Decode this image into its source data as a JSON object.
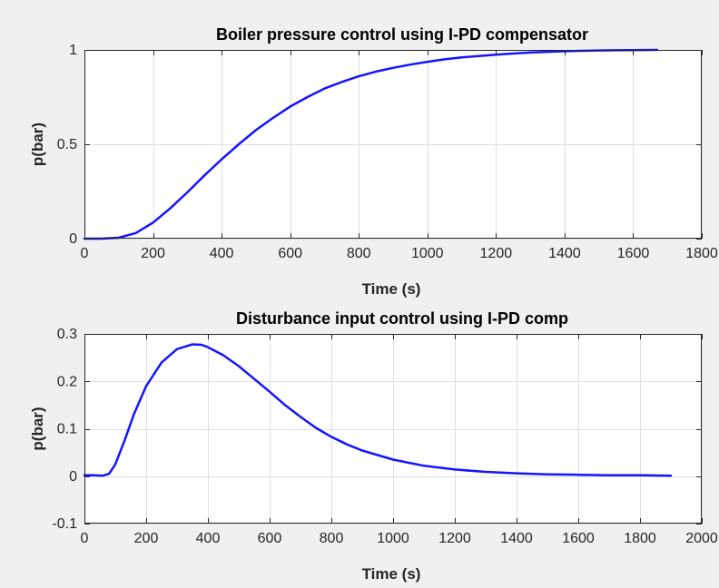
{
  "chart_data": [
    {
      "type": "line",
      "title": "Boiler pressure control using I-PD compensator",
      "xlabel": "Time (s)",
      "ylabel": "p(bar)",
      "xlim": [
        0,
        1800
      ],
      "ylim": [
        0,
        1
      ],
      "xticks": [
        0,
        200,
        400,
        600,
        800,
        1000,
        1200,
        1400,
        1600,
        1800
      ],
      "yticks": [
        0,
        0.5,
        1
      ],
      "xtick_labels": [
        "0",
        "200",
        "400",
        "600",
        "800",
        "1000",
        "1200",
        "1400",
        "1600",
        "1800"
      ],
      "ytick_labels": [
        "0",
        "0.5",
        "1"
      ],
      "grid": true,
      "color": "#1414ff",
      "series": [
        {
          "x": [
            0,
            50,
            100,
            150,
            200,
            250,
            300,
            350,
            400,
            450,
            500,
            550,
            600,
            650,
            700,
            750,
            800,
            850,
            900,
            950,
            1000,
            1050,
            1100,
            1150,
            1200,
            1250,
            1300,
            1350,
            1400,
            1450,
            1500,
            1550,
            1600,
            1670
          ],
          "y": [
            0.0,
            0.0,
            0.005,
            0.03,
            0.085,
            0.16,
            0.245,
            0.335,
            0.42,
            0.5,
            0.575,
            0.64,
            0.7,
            0.75,
            0.795,
            0.83,
            0.86,
            0.885,
            0.905,
            0.922,
            0.937,
            0.95,
            0.96,
            0.968,
            0.975,
            0.981,
            0.986,
            0.99,
            0.993,
            0.995,
            0.997,
            0.998,
            0.999,
            1.0
          ]
        }
      ]
    },
    {
      "type": "line",
      "title": "Disturbance input control using I-PD comp",
      "xlabel": "Time (s)",
      "ylabel": "p(bar)",
      "xlim": [
        0,
        2000
      ],
      "ylim": [
        -0.1,
        0.3
      ],
      "xticks": [
        0,
        200,
        400,
        600,
        800,
        1000,
        1200,
        1400,
        1600,
        1800,
        2000
      ],
      "yticks": [
        -0.1,
        0,
        0.1,
        0.2,
        0.3
      ],
      "xtick_labels": [
        "0",
        "200",
        "400",
        "600",
        "800",
        "1000",
        "1200",
        "1400",
        "1600",
        "1800",
        "2000"
      ],
      "ytick_labels": [
        "-0.1",
        "0",
        "0.1",
        "0.2",
        "0.3"
      ],
      "grid": true,
      "color": "#1414ff",
      "series": [
        {
          "x": [
            0,
            30,
            60,
            80,
            100,
            130,
            160,
            200,
            250,
            300,
            350,
            380,
            400,
            450,
            500,
            550,
            600,
            650,
            700,
            750,
            800,
            850,
            900,
            1000,
            1100,
            1200,
            1300,
            1400,
            1500,
            1600,
            1700,
            1800,
            1900
          ],
          "y": [
            0.002,
            0.002,
            0.001,
            0.005,
            0.025,
            0.075,
            0.13,
            0.19,
            0.24,
            0.268,
            0.278,
            0.277,
            0.272,
            0.255,
            0.232,
            0.205,
            0.178,
            0.15,
            0.125,
            0.102,
            0.083,
            0.067,
            0.054,
            0.035,
            0.022,
            0.014,
            0.009,
            0.006,
            0.004,
            0.003,
            0.002,
            0.002,
            0.001
          ]
        }
      ]
    }
  ]
}
